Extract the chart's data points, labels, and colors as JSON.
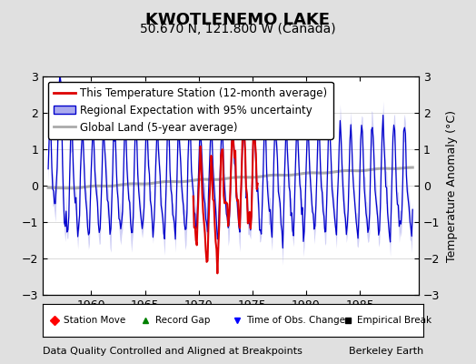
{
  "title": "KWOTLENEMO LAKE",
  "subtitle": "50.670 N, 121.800 W (Canada)",
  "ylabel": "Temperature Anomaly (°C)",
  "xlim": [
    1955.5,
    1990.5
  ],
  "ylim": [
    -3,
    3
  ],
  "xticks": [
    1960,
    1965,
    1970,
    1975,
    1980,
    1985
  ],
  "yticks": [
    -3,
    -2,
    -1,
    0,
    1,
    2,
    3
  ],
  "footer_left": "Data Quality Controlled and Aligned at Breakpoints",
  "footer_right": "Berkeley Earth",
  "background_color": "#e0e0e0",
  "plot_bg_color": "#ffffff",
  "blue_line_color": "#0000cc",
  "blue_fill_color": "#aaaaee",
  "red_line_color": "#dd0000",
  "gray_line_color": "#aaaaaa",
  "title_fontsize": 13,
  "subtitle_fontsize": 10,
  "legend_fontsize": 8.5,
  "axis_fontsize": 9,
  "footer_fontsize": 8,
  "years_start": 1956.0,
  "n_months": 408,
  "red_start_year": 1969.5,
  "red_end_year": 1975.5
}
